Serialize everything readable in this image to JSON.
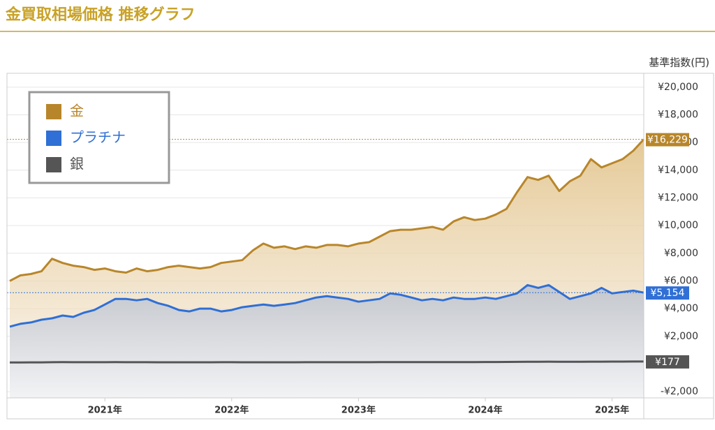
{
  "chart_data": {
    "type": "line",
    "title": "金買取相場価格 推移グラフ",
    "y_label": "基準指数(円)",
    "categories": [
      null,
      null,
      null,
      null,
      null,
      null,
      null,
      null,
      null,
      "2021年",
      null,
      null,
      null,
      null,
      null,
      null,
      null,
      null,
      null,
      null,
      null,
      "2022年",
      null,
      null,
      null,
      null,
      null,
      null,
      null,
      null,
      null,
      null,
      null,
      "2023年",
      null,
      null,
      null,
      null,
      null,
      null,
      null,
      null,
      null,
      null,
      null,
      "2024年",
      null,
      null,
      null,
      null,
      null,
      null,
      null,
      null,
      null,
      null,
      null,
      "2025年",
      null,
      null,
      null
    ],
    "series": [
      {
        "name": "金",
        "color": "#b8862a",
        "fill": "#e9cf9e",
        "values": [
          6000,
          6400,
          6500,
          6700,
          7600,
          7300,
          7100,
          7000,
          6800,
          6900,
          6700,
          6600,
          6900,
          6700,
          6800,
          7000,
          7100,
          7000,
          6900,
          7000,
          7300,
          7400,
          7500,
          8200,
          8700,
          8400,
          8500,
          8300,
          8500,
          8400,
          8600,
          8600,
          8500,
          8700,
          8800,
          9200,
          9600,
          9700,
          9700,
          9800,
          9900,
          9700,
          10300,
          10600,
          10400,
          10500,
          10800,
          11200,
          12400,
          13500,
          13300,
          13600,
          12500,
          13200,
          13600,
          14800,
          14200,
          14500,
          14800,
          15400,
          16229
        ],
        "value_labels": [
          null,
          null,
          null,
          null,
          null,
          null,
          null,
          null,
          null,
          null,
          null,
          null,
          null,
          null,
          null,
          null,
          null,
          null,
          null,
          null,
          null,
          null,
          null,
          null,
          null,
          null,
          null,
          null,
          null,
          null,
          null,
          null,
          null,
          null,
          null,
          null,
          null,
          null,
          null,
          null,
          null,
          null,
          null,
          null,
          null,
          null,
          null,
          null,
          null,
          null,
          null,
          null,
          null,
          null,
          null,
          null,
          null,
          null,
          null,
          null,
          "¥16,229"
        ]
      },
      {
        "name": "プラチナ",
        "color": "#2f6fd6",
        "fill": "#c9cdd4",
        "values": [
          2700,
          2900,
          3000,
          3200,
          3300,
          3500,
          3400,
          3700,
          3900,
          4300,
          4700,
          4700,
          4600,
          4700,
          4400,
          4200,
          3900,
          3800,
          4000,
          4000,
          3800,
          3900,
          4100,
          4200,
          4300,
          4200,
          4300,
          4400,
          4600,
          4800,
          4900,
          4800,
          4700,
          4500,
          4600,
          4700,
          5100,
          5000,
          4800,
          4600,
          4700,
          4600,
          4800,
          4700,
          4700,
          4800,
          4700,
          4900,
          5100,
          5700,
          5500,
          5700,
          5200,
          4700,
          4900,
          5100,
          5500,
          5100,
          5200,
          5300,
          5154
        ],
        "value_labels": [
          null,
          null,
          null,
          null,
          null,
          null,
          null,
          null,
          null,
          null,
          null,
          null,
          null,
          null,
          null,
          null,
          null,
          null,
          null,
          null,
          null,
          null,
          null,
          null,
          null,
          null,
          null,
          null,
          null,
          null,
          null,
          null,
          null,
          null,
          null,
          null,
          null,
          null,
          null,
          null,
          null,
          null,
          null,
          null,
          null,
          null,
          null,
          null,
          null,
          null,
          null,
          null,
          null,
          null,
          null,
          null,
          null,
          null,
          null,
          null,
          "¥5,154"
        ]
      },
      {
        "name": "銀",
        "color": "#555555",
        "values": [
          110,
          112,
          115,
          118,
          125,
          130,
          128,
          126,
          125,
          127,
          130,
          128,
          127,
          126,
          124,
          122,
          120,
          121,
          123,
          124,
          126,
          125,
          124,
          122,
          121,
          122,
          123,
          124,
          125,
          127,
          128,
          126,
          127,
          128,
          129,
          130,
          131,
          130,
          131,
          132,
          133,
          134,
          135,
          136,
          138,
          140,
          143,
          147,
          152,
          158,
          162,
          165,
          163,
          160,
          162,
          165,
          168,
          170,
          172,
          175,
          177
        ],
        "value_labels": [
          null,
          null,
          null,
          null,
          null,
          null,
          null,
          null,
          null,
          null,
          null,
          null,
          null,
          null,
          null,
          null,
          null,
          null,
          null,
          null,
          null,
          null,
          null,
          null,
          null,
          null,
          null,
          null,
          null,
          null,
          null,
          null,
          null,
          null,
          null,
          null,
          null,
          null,
          null,
          null,
          null,
          null,
          null,
          null,
          null,
          null,
          null,
          null,
          null,
          null,
          null,
          null,
          null,
          null,
          null,
          null,
          null,
          null,
          null,
          null,
          "¥177"
        ]
      }
    ],
    "ylim": [
      -2450,
      21000
    ],
    "yticks": [
      {
        "value": -2000,
        "label": "-¥2,000"
      },
      {
        "value": 2000,
        "label": "¥2,000"
      },
      {
        "value": 4000,
        "label": "¥4,000"
      },
      {
        "value": 6000,
        "label": "¥6,000"
      },
      {
        "value": 8000,
        "label": "¥8,000"
      },
      {
        "value": 10000,
        "label": "¥10,000"
      },
      {
        "value": 12000,
        "label": "¥12,000"
      },
      {
        "value": 14000,
        "label": "¥14,000"
      },
      {
        "value": 16000,
        "label": "¥16,000"
      },
      {
        "value": 18000,
        "label": "¥18,000"
      },
      {
        "value": 20000,
        "label": "¥20,000"
      }
    ],
    "grid": true,
    "legend": "upper left"
  }
}
